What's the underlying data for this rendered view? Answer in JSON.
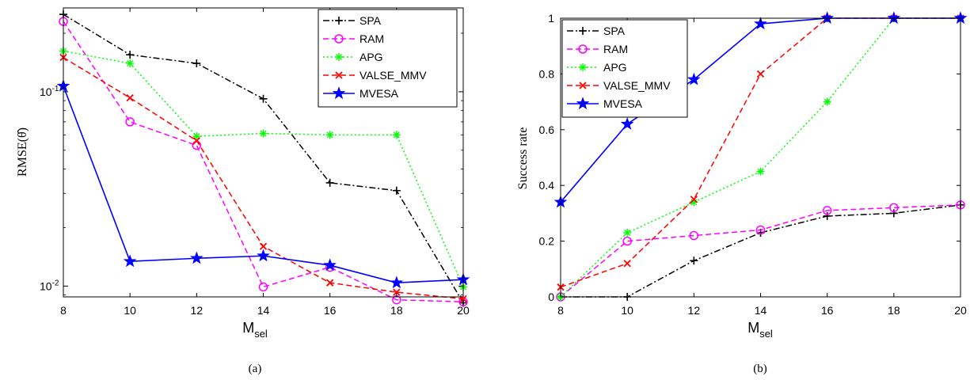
{
  "chart_data": [
    {
      "type": "line",
      "panel_caption": "(a)",
      "xlabel": "M",
      "xlabel_sub": "sel",
      "ylabel": "RMSE(θ̂)",
      "yscale": "log",
      "xlim": [
        8,
        20
      ],
      "ylim": [
        0.0088,
        0.27
      ],
      "x_ticks": [
        8,
        10,
        12,
        14,
        16,
        18,
        20
      ],
      "y_ticks": [
        {
          "value": 0.01,
          "base": "10",
          "exp": "-2"
        },
        {
          "value": 0.1,
          "base": "10",
          "exp": "-1"
        }
      ],
      "legend_position": "top-right",
      "x": [
        8,
        10,
        12,
        14,
        16,
        18,
        20
      ],
      "series": [
        {
          "name": "SPA",
          "color": "#000000",
          "dash": "dashdot",
          "marker": "plus",
          "values": [
            0.25,
            0.155,
            0.14,
            0.092,
            0.034,
            0.031,
            0.0082
          ]
        },
        {
          "name": "RAM",
          "color": "#ff00ff",
          "dash": "dash",
          "marker": "circle",
          "values": [
            0.23,
            0.07,
            0.053,
            0.0099,
            0.0125,
            0.0085,
            0.0083
          ]
        },
        {
          "name": "APG",
          "color": "#00ff00",
          "dash": "dot",
          "marker": "asterisk",
          "values": [
            0.162,
            0.14,
            0.059,
            0.061,
            0.06,
            0.06,
            0.0099
          ]
        },
        {
          "name": "VALSE_MMV",
          "color": "#ff0000",
          "dash": "dash",
          "marker": "x",
          "values": [
            0.15,
            0.093,
            0.056,
            0.016,
            0.0104,
            0.0093,
            0.0086
          ]
        },
        {
          "name": "MVESA",
          "color": "#0000ff",
          "dash": "solid",
          "marker": "star",
          "values": [
            0.107,
            0.0134,
            0.0139,
            0.0143,
            0.0128,
            0.0104,
            0.0108
          ]
        }
      ]
    },
    {
      "type": "line",
      "panel_caption": "(b)",
      "xlabel": "M",
      "xlabel_sub": "sel",
      "ylabel": "Success rate",
      "yscale": "linear",
      "xlim": [
        8,
        20
      ],
      "ylim": [
        0,
        1
      ],
      "x_ticks": [
        8,
        10,
        12,
        14,
        16,
        18,
        20
      ],
      "y_ticks": [
        0,
        0.2,
        0.4,
        0.6,
        0.8,
        1
      ],
      "legend_position": "top-left",
      "x": [
        8,
        10,
        12,
        14,
        16,
        18,
        20
      ],
      "series": [
        {
          "name": "SPA",
          "color": "#000000",
          "dash": "dashdot",
          "marker": "plus",
          "values": [
            0,
            0,
            0.13,
            0.23,
            0.29,
            0.3,
            0.33
          ]
        },
        {
          "name": "RAM",
          "color": "#ff00ff",
          "dash": "dash",
          "marker": "circle",
          "values": [
            0,
            0.2,
            0.22,
            0.24,
            0.31,
            0.32,
            0.33
          ]
        },
        {
          "name": "APG",
          "color": "#00ff00",
          "dash": "dot",
          "marker": "asterisk",
          "values": [
            0,
            0.23,
            0.34,
            0.45,
            0.7,
            1,
            1
          ]
        },
        {
          "name": "VALSE_MMV",
          "color": "#ff0000",
          "dash": "dash",
          "marker": "x",
          "values": [
            0.035,
            0.12,
            0.35,
            0.8,
            1,
            1,
            1
          ]
        },
        {
          "name": "MVESA",
          "color": "#0000ff",
          "dash": "solid",
          "marker": "star",
          "values": [
            0.34,
            0.62,
            0.78,
            0.98,
            1,
            1,
            1
          ]
        }
      ]
    }
  ]
}
